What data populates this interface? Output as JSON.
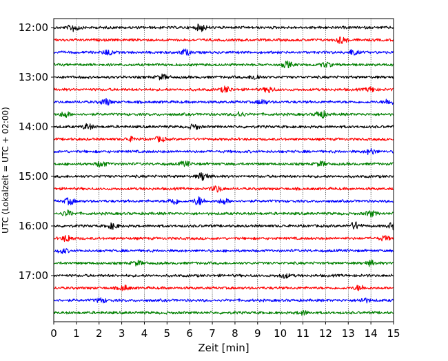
{
  "chart_data": {
    "type": "line",
    "title": "",
    "xlabel": "Zeit  [min]",
    "ylabel": "UTC (Lokalzeit = UTC + 02:00)",
    "xlim": [
      0,
      15
    ],
    "x_ticks": [
      0,
      1,
      2,
      3,
      4,
      5,
      6,
      7,
      8,
      9,
      10,
      11,
      12,
      13,
      14,
      15
    ],
    "x_tick_labels": [
      "0",
      "1",
      "2",
      "3",
      "4",
      "5",
      "6",
      "7",
      "8",
      "9",
      "10",
      "11",
      "12",
      "13",
      "14",
      "15"
    ],
    "y_tick_labels": [
      "12:00",
      "13:00",
      "14:00",
      "15:00",
      "16:00",
      "17:00"
    ],
    "grid": {
      "x": true,
      "y": false
    },
    "trace_colors": [
      "#000000",
      "#ff0000",
      "#0000ff",
      "#008000"
    ],
    "trace_minutes": 15,
    "traces": [
      {
        "start": "12:00",
        "color": "#000000",
        "bursts": [
          {
            "x": 0.9,
            "amp": 1.4
          },
          {
            "x": 6.5,
            "amp": 1.3
          }
        ]
      },
      {
        "start": "12:15",
        "color": "#ff0000",
        "bursts": [
          {
            "x": 12.7,
            "amp": 1.2
          }
        ]
      },
      {
        "start": "12:30",
        "color": "#0000ff",
        "bursts": [
          {
            "x": 2.4,
            "amp": 1.0
          },
          {
            "x": 5.8,
            "amp": 1.0
          },
          {
            "x": 13.2,
            "amp": 0.9
          }
        ]
      },
      {
        "start": "12:45",
        "color": "#008000",
        "bursts": [
          {
            "x": 10.3,
            "amp": 1.1
          },
          {
            "x": 12.0,
            "amp": 0.8
          }
        ]
      },
      {
        "start": "13:00",
        "color": "#000000",
        "bursts": [
          {
            "x": 4.8,
            "amp": 0.9
          },
          {
            "x": 8.9,
            "amp": 1.0
          }
        ]
      },
      {
        "start": "13:15",
        "color": "#ff0000",
        "bursts": [
          {
            "x": 7.6,
            "amp": 1.1
          },
          {
            "x": 9.5,
            "amp": 1.0
          },
          {
            "x": 14.0,
            "amp": 0.8
          }
        ]
      },
      {
        "start": "13:30",
        "color": "#0000ff",
        "bursts": [
          {
            "x": 2.3,
            "amp": 1.2
          },
          {
            "x": 9.2,
            "amp": 0.9
          },
          {
            "x": 14.8,
            "amp": 1.0
          }
        ]
      },
      {
        "start": "13:45",
        "color": "#008000",
        "bursts": [
          {
            "x": 0.5,
            "amp": 1.0
          },
          {
            "x": 8.2,
            "amp": 1.0
          },
          {
            "x": 11.8,
            "amp": 1.4
          }
        ]
      },
      {
        "start": "14:00",
        "color": "#000000",
        "bursts": [
          {
            "x": 1.5,
            "amp": 1.0
          },
          {
            "x": 6.2,
            "amp": 0.9
          }
        ]
      },
      {
        "start": "14:15",
        "color": "#ff0000",
        "bursts": [
          {
            "x": 3.4,
            "amp": 0.7
          },
          {
            "x": 4.7,
            "amp": 0.9
          }
        ]
      },
      {
        "start": "14:30",
        "color": "#0000ff",
        "bursts": [
          {
            "x": 14.0,
            "amp": 1.0
          }
        ]
      },
      {
        "start": "14:45",
        "color": "#008000",
        "bursts": [
          {
            "x": 2.1,
            "amp": 1.0
          },
          {
            "x": 5.8,
            "amp": 0.9
          },
          {
            "x": 11.8,
            "amp": 0.8
          }
        ]
      },
      {
        "start": "15:00",
        "color": "#000000",
        "bursts": [
          {
            "x": 6.6,
            "amp": 1.5
          }
        ]
      },
      {
        "start": "15:15",
        "color": "#ff0000",
        "bursts": [
          {
            "x": 7.2,
            "amp": 1.1
          }
        ]
      },
      {
        "start": "15:30",
        "color": "#0000ff",
        "bursts": [
          {
            "x": 0.7,
            "amp": 1.2
          },
          {
            "x": 5.3,
            "amp": 1.2
          },
          {
            "x": 6.4,
            "amp": 1.5
          },
          {
            "x": 7.5,
            "amp": 1.0
          }
        ]
      },
      {
        "start": "15:45",
        "color": "#008000",
        "bursts": [
          {
            "x": 0.6,
            "amp": 1.0
          },
          {
            "x": 14.0,
            "amp": 1.0
          }
        ]
      },
      {
        "start": "16:00",
        "color": "#000000",
        "bursts": [
          {
            "x": 2.6,
            "amp": 1.0
          },
          {
            "x": 13.3,
            "amp": 1.3
          },
          {
            "x": 15.0,
            "amp": 1.3
          }
        ]
      },
      {
        "start": "16:15",
        "color": "#ff0000",
        "bursts": [
          {
            "x": 0.6,
            "amp": 1.2
          },
          {
            "x": 14.6,
            "amp": 0.8
          }
        ]
      },
      {
        "start": "16:30",
        "color": "#0000ff",
        "bursts": [
          {
            "x": 0.4,
            "amp": 0.8
          }
        ]
      },
      {
        "start": "16:45",
        "color": "#008000",
        "bursts": [
          {
            "x": 3.7,
            "amp": 0.8
          },
          {
            "x": 14.0,
            "amp": 0.9
          }
        ]
      },
      {
        "start": "17:00",
        "color": "#000000",
        "bursts": [
          {
            "x": 10.2,
            "amp": 0.8
          }
        ]
      },
      {
        "start": "17:15",
        "color": "#ff0000",
        "bursts": [
          {
            "x": 3.1,
            "amp": 0.9
          },
          {
            "x": 13.5,
            "amp": 0.9
          }
        ]
      },
      {
        "start": "17:30",
        "color": "#0000ff",
        "bursts": [
          {
            "x": 2.1,
            "amp": 0.8
          },
          {
            "x": 13.7,
            "amp": 0.8
          }
        ]
      },
      {
        "start": "17:45",
        "color": "#008000",
        "bursts": [
          {
            "x": 11.0,
            "amp": 0.7
          }
        ]
      }
    ]
  }
}
